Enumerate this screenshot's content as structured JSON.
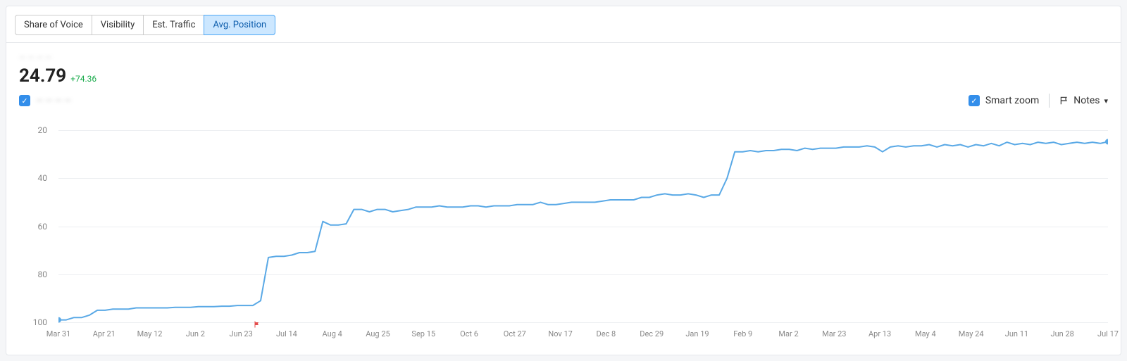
{
  "tabs": [
    {
      "label": "Share of Voice",
      "active": false
    },
    {
      "label": "Visibility",
      "active": false
    },
    {
      "label": "Est. Traffic",
      "active": false
    },
    {
      "label": "Avg. Position",
      "active": true
    }
  ],
  "summary": {
    "blurred_context": "— — — —",
    "value": "24.79",
    "delta": "+74.36"
  },
  "left_legend": {
    "checked": true,
    "blurred_label": "— — — —"
  },
  "right_controls": {
    "smart_zoom": {
      "checked": true,
      "label": "Smart zoom"
    },
    "notes": {
      "label": "Notes"
    }
  },
  "chart": {
    "type": "line",
    "y_axis": {
      "min": 20,
      "max": 100,
      "inverted": true,
      "ticks": [
        20,
        40,
        60,
        80,
        100
      ],
      "label_fontsize": 12,
      "label_color": "#888888"
    },
    "x_axis": {
      "tick_labels": [
        "Mar 31",
        "Apr 21",
        "May 12",
        "Jun 2",
        "Jun 23",
        "Jul 14",
        "Aug 4",
        "Aug 25",
        "Sep 15",
        "Oct 6",
        "Oct 27",
        "Nov 17",
        "Dec 8",
        "Dec 29",
        "Jan 19",
        "Feb 9",
        "Mar 2",
        "Mar 23",
        "Apr 13",
        "May 4",
        "May 24",
        "Jun 11",
        "Jun 28",
        "Jul 17"
      ],
      "label_fontsize": 11,
      "label_color": "#888888"
    },
    "line_color": "#5aa9e6",
    "line_width": 2,
    "start_dot_color": "#5aa9e6",
    "end_dot_color": "#5aa9e6",
    "dot_radius": 4,
    "grid_color": "#eceef1",
    "background_color": "#ffffff",
    "flag": {
      "x_index": 4.35,
      "color": "#e44c4c"
    },
    "series": [
      99,
      99,
      98,
      98,
      97,
      95,
      95,
      94.5,
      94.5,
      94.5,
      94,
      94,
      94,
      94,
      94,
      93.8,
      93.8,
      93.8,
      93.5,
      93.5,
      93.5,
      93.3,
      93.3,
      93,
      93,
      93,
      91,
      73,
      72.5,
      72.5,
      72,
      71,
      71,
      70.5,
      58,
      59.5,
      59.5,
      59,
      53,
      53,
      54,
      53,
      53,
      54,
      53.5,
      53,
      52,
      52,
      52,
      51.5,
      52,
      52,
      52,
      51.5,
      51.5,
      52,
      51.5,
      51.5,
      51.5,
      51,
      51,
      51,
      50,
      51,
      51,
      50.5,
      50,
      50,
      50,
      50,
      49.5,
      49,
      49,
      49,
      49,
      48,
      48,
      47,
      46.5,
      47,
      47,
      46.5,
      47,
      48,
      47,
      47,
      40,
      29,
      29,
      28.5,
      29,
      28.5,
      28.5,
      28,
      28,
      28.5,
      27.5,
      28,
      27.5,
      27.5,
      27.5,
      27,
      27,
      27,
      26.5,
      27,
      29,
      27,
      26.5,
      27,
      26.5,
      26.5,
      26,
      27,
      26,
      26.5,
      26,
      27,
      26,
      26.5,
      25.5,
      26.5,
      25,
      26,
      25.5,
      26,
      25,
      25.5,
      25,
      26,
      25.5,
      25,
      25.5,
      25,
      25.5,
      24.8
    ]
  }
}
